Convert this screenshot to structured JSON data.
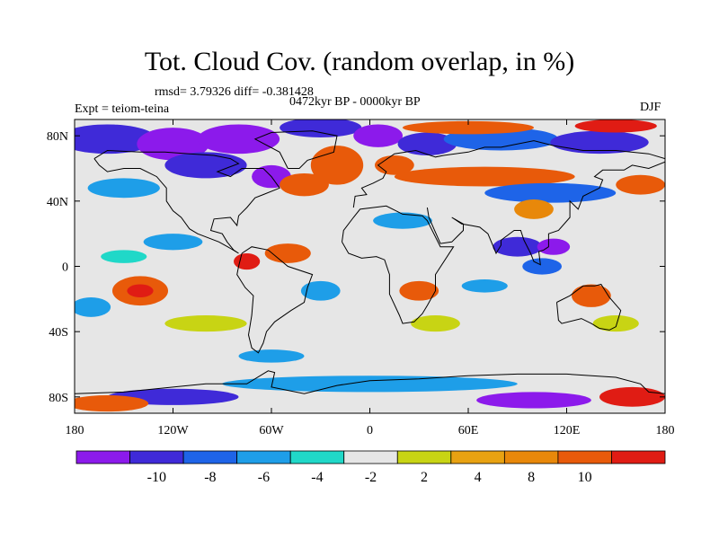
{
  "title": "Tot. Cloud Cov. (random overlap, in %)",
  "stats": "rmsd= 3.79326 diff= -0.381428",
  "period": "0472kyr BP - 0000kyr BP",
  "experiment": "Expt = teiom-teina",
  "season": "DJF",
  "map": {
    "projection": "cylindrical equidistant",
    "lon_range": [
      -180,
      180
    ],
    "lat_range": [
      -90,
      90
    ],
    "lon_ticks": [
      {
        "value": -180,
        "label": "180"
      },
      {
        "value": -120,
        "label": "120W"
      },
      {
        "value": -60,
        "label": "60W"
      },
      {
        "value": 0,
        "label": "0"
      },
      {
        "value": 60,
        "label": "60E"
      },
      {
        "value": 120,
        "label": "120E"
      },
      {
        "value": 180,
        "label": "180"
      }
    ],
    "lat_ticks": [
      {
        "value": 80,
        "label": "80N"
      },
      {
        "value": 40,
        "label": "40N"
      },
      {
        "value": 0,
        "label": "0"
      },
      {
        "value": -40,
        "label": "40S"
      },
      {
        "value": -80,
        "label": "80S"
      }
    ],
    "blobs": [
      {
        "lon": -160,
        "lat": 78,
        "rlon": 30,
        "rlat": 9,
        "bin": 1
      },
      {
        "lon": -120,
        "lat": 75,
        "rlon": 22,
        "rlat": 10,
        "bin": 0
      },
      {
        "lon": -80,
        "lat": 78,
        "rlon": 25,
        "rlat": 9,
        "bin": 0
      },
      {
        "lon": -100,
        "lat": 62,
        "rlon": 25,
        "rlat": 8,
        "bin": 1
      },
      {
        "lon": -60,
        "lat": 55,
        "rlon": 12,
        "rlat": 7,
        "bin": 0
      },
      {
        "lon": -30,
        "lat": 85,
        "rlon": 25,
        "rlat": 6,
        "bin": 1
      },
      {
        "lon": -20,
        "lat": 62,
        "rlon": 16,
        "rlat": 12,
        "bin": 9
      },
      {
        "lon": -40,
        "lat": 50,
        "rlon": 15,
        "rlat": 7,
        "bin": 9
      },
      {
        "lon": 5,
        "lat": 80,
        "rlon": 15,
        "rlat": 7,
        "bin": 0
      },
      {
        "lon": 35,
        "lat": 75,
        "rlon": 18,
        "rlat": 7,
        "bin": 1
      },
      {
        "lon": 80,
        "lat": 78,
        "rlon": 35,
        "rlat": 7,
        "bin": 2
      },
      {
        "lon": 140,
        "lat": 76,
        "rlon": 30,
        "rlat": 7,
        "bin": 1
      },
      {
        "lon": 60,
        "lat": 85,
        "rlon": 40,
        "rlat": 4,
        "bin": 9
      },
      {
        "lon": 150,
        "lat": 86,
        "rlon": 25,
        "rlat": 4,
        "bin": 10
      },
      {
        "lon": 15,
        "lat": 62,
        "rlon": 12,
        "rlat": 6,
        "bin": 9
      },
      {
        "lon": 70,
        "lat": 55,
        "rlon": 55,
        "rlat": 6,
        "bin": 9
      },
      {
        "lon": 110,
        "lat": 45,
        "rlon": 40,
        "rlat": 6,
        "bin": 2
      },
      {
        "lon": 165,
        "lat": 50,
        "rlon": 15,
        "rlat": 6,
        "bin": 9
      },
      {
        "lon": -150,
        "lat": 48,
        "rlon": 22,
        "rlat": 6,
        "bin": 3
      },
      {
        "lon": 100,
        "lat": 35,
        "rlon": 12,
        "rlat": 6,
        "bin": 8
      },
      {
        "lon": 90,
        "lat": 12,
        "rlon": 15,
        "rlat": 6,
        "bin": 1
      },
      {
        "lon": 112,
        "lat": 12,
        "rlon": 10,
        "rlat": 5,
        "bin": 0
      },
      {
        "lon": 105,
        "lat": 0,
        "rlon": 12,
        "rlat": 5,
        "bin": 2
      },
      {
        "lon": 20,
        "lat": 28,
        "rlon": 18,
        "rlat": 5,
        "bin": 3
      },
      {
        "lon": -50,
        "lat": 8,
        "rlon": 14,
        "rlat": 6,
        "bin": 9
      },
      {
        "lon": -75,
        "lat": 3,
        "rlon": 8,
        "rlat": 5,
        "bin": 10
      },
      {
        "lon": -120,
        "lat": 15,
        "rlon": 18,
        "rlat": 5,
        "bin": 3
      },
      {
        "lon": -150,
        "lat": 6,
        "rlon": 14,
        "rlat": 4,
        "bin": 4
      },
      {
        "lon": -140,
        "lat": -15,
        "rlon": 17,
        "rlat": 9,
        "bin": 9
      },
      {
        "lon": -140,
        "lat": -15,
        "rlon": 8,
        "rlat": 4,
        "bin": 10
      },
      {
        "lon": -170,
        "lat": -25,
        "rlon": 12,
        "rlat": 6,
        "bin": 3
      },
      {
        "lon": -100,
        "lat": -35,
        "rlon": 25,
        "rlat": 5,
        "bin": 6
      },
      {
        "lon": -30,
        "lat": -15,
        "rlon": 12,
        "rlat": 6,
        "bin": 3
      },
      {
        "lon": 30,
        "lat": -15,
        "rlon": 12,
        "rlat": 6,
        "bin": 9
      },
      {
        "lon": 70,
        "lat": -12,
        "rlon": 14,
        "rlat": 4,
        "bin": 3
      },
      {
        "lon": 40,
        "lat": -35,
        "rlon": 15,
        "rlat": 5,
        "bin": 6
      },
      {
        "lon": 135,
        "lat": -18,
        "rlon": 12,
        "rlat": 7,
        "bin": 9
      },
      {
        "lon": 150,
        "lat": -35,
        "rlon": 14,
        "rlat": 5,
        "bin": 6
      },
      {
        "lon": -60,
        "lat": -55,
        "rlon": 20,
        "rlat": 4,
        "bin": 3
      },
      {
        "lon": 0,
        "lat": -72,
        "rlon": 90,
        "rlat": 5,
        "bin": 3
      },
      {
        "lon": -120,
        "lat": -80,
        "rlon": 40,
        "rlat": 5,
        "bin": 1
      },
      {
        "lon": 100,
        "lat": -82,
        "rlon": 35,
        "rlat": 5,
        "bin": 0
      },
      {
        "lon": -160,
        "lat": -84,
        "rlon": 25,
        "rlat": 5,
        "bin": 9
      },
      {
        "lon": 160,
        "lat": -80,
        "rlon": 20,
        "rlat": 6,
        "bin": 10
      }
    ]
  },
  "colorbar": {
    "colors": [
      "#8c1aeb",
      "#3f2ad8",
      "#1e64e8",
      "#1e9ee8",
      "#20d8c8",
      "#e6e6e6",
      "#c8d414",
      "#e8a212",
      "#e8880a",
      "#e85a0a",
      "#e01c14"
    ],
    "labels": [
      "-10",
      "-8",
      "-6",
      "-4",
      "-2",
      "2",
      "4",
      "8",
      "10"
    ]
  }
}
